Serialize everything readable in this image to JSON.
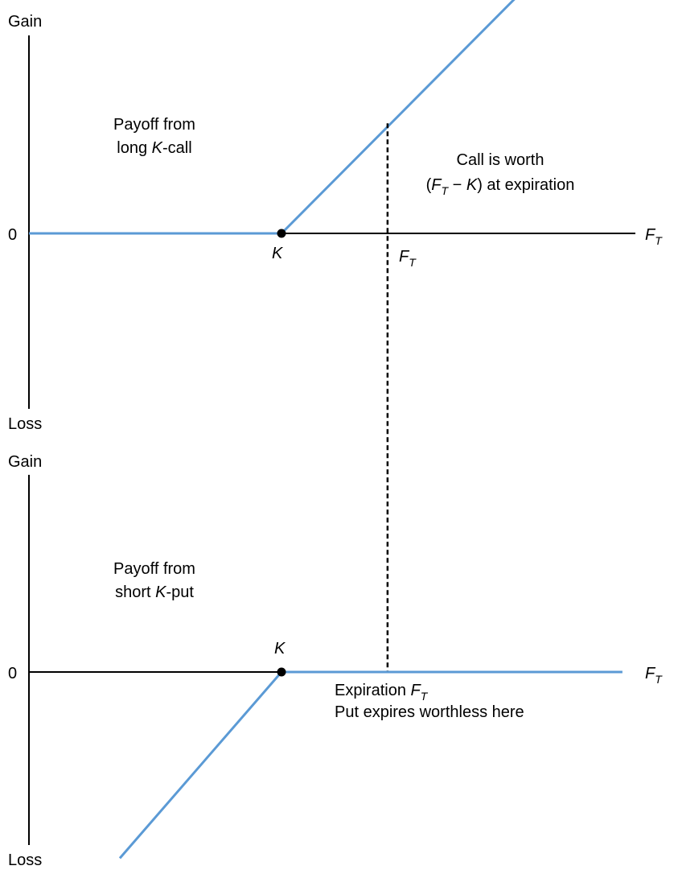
{
  "colors": {
    "payoff_line": "#5b9ad5",
    "axis": "#000000",
    "text": "#000000"
  },
  "chart_data": [
    {
      "type": "line",
      "title": "",
      "y_axis": {
        "top_label": "Gain",
        "bottom_label": "Loss",
        "zero_label": "0"
      },
      "x_axis": {
        "label_main": "F",
        "label_sub": "T"
      },
      "strike_label": "K",
      "marker_label": {
        "main": "F",
        "sub": "T"
      },
      "annotation": {
        "line1": "Payoff from",
        "line2_pre": "long ",
        "line2_italic": "K",
        "line2_post": "-call"
      },
      "callout": {
        "line1": "Call is worth",
        "line2_open": "(",
        "line2_f": "F",
        "line2_sub": "T",
        "line2_minus": " − ",
        "line2_k": "K",
        "line2_close": ") at expiration"
      },
      "grid": false,
      "x": [
        0,
        1,
        2
      ],
      "y": [
        0,
        0,
        1.2
      ],
      "strike_x": 1,
      "expiration_x": 1.42,
      "expiration_payoff": 0.52,
      "ylim": [
        -0.95,
        0.93
      ],
      "xlim": [
        0,
        1.75
      ]
    },
    {
      "type": "line",
      "title": "",
      "y_axis": {
        "top_label": "Gain",
        "bottom_label": "Loss",
        "zero_label": "0"
      },
      "x_axis": {
        "label_main": "F",
        "label_sub": "T"
      },
      "strike_label": "K",
      "annotation": {
        "line1": "Payoff from",
        "line2_pre": "short ",
        "line2_italic": "K",
        "line2_post": "-put"
      },
      "callout": {
        "line1_pre": "Expiration ",
        "line1_f": "F",
        "line1_sub": "T",
        "line2": "Put expires worthless here"
      },
      "grid": false,
      "x": [
        0.36,
        1,
        2.35
      ],
      "y": [
        -0.88,
        0,
        0
      ],
      "strike_x": 1,
      "expiration_x": 1.42,
      "ylim": [
        -0.95,
        0.93
      ],
      "xlim": [
        0,
        1.75
      ]
    }
  ]
}
